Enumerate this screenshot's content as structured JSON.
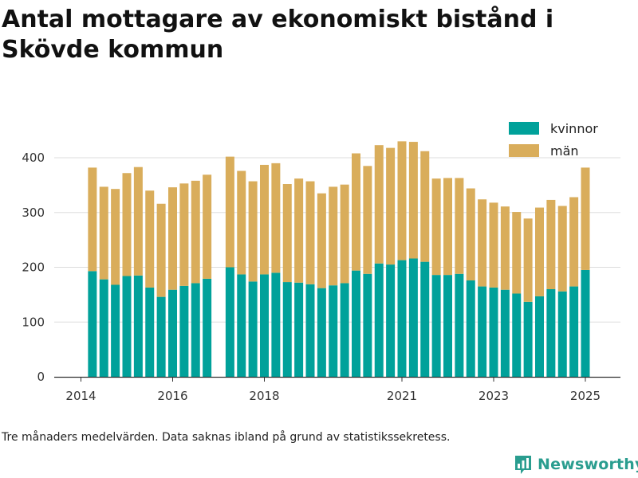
{
  "title": "Antal mottagare av ekonomiskt bistånd i Skövde kommun",
  "footnote": "Tre månaders medelvärden. Data saknas ibland på grund av statistikssekretess.",
  "brand": {
    "name": "Newsworthy",
    "icon": "newsworthy-chart-logo-icon"
  },
  "colors": {
    "kvinnor": "#00a19a",
    "man": "#d9ad5b",
    "grid": "#dddddd",
    "axis": "#333333"
  },
  "chart_data": {
    "type": "bar",
    "stacked": true,
    "x_unit": "quarter",
    "x_ticks": [
      "2014",
      "2016",
      "2018",
      "2021",
      "2023",
      "2025"
    ],
    "y_ticks": [
      "0",
      "100",
      "200",
      "300",
      "400"
    ],
    "ylim": [
      0,
      430
    ],
    "legend_position": "top-right",
    "grid": "horizontal",
    "series": [
      {
        "name": "kvinnor",
        "color": "#00a19a"
      },
      {
        "name": "män",
        "color": "#d9ad5b"
      }
    ],
    "points": [
      {
        "q": "2014-Q1",
        "kvinnor": null,
        "man": null
      },
      {
        "q": "2014-Q2",
        "kvinnor": 193,
        "man": 189
      },
      {
        "q": "2014-Q3",
        "kvinnor": 178,
        "man": 169
      },
      {
        "q": "2014-Q4",
        "kvinnor": 168,
        "man": 175
      },
      {
        "q": "2015-Q1",
        "kvinnor": 184,
        "man": 188
      },
      {
        "q": "2015-Q2",
        "kvinnor": 185,
        "man": 198
      },
      {
        "q": "2015-Q3",
        "kvinnor": 163,
        "man": 177
      },
      {
        "q": "2015-Q4",
        "kvinnor": 146,
        "man": 170
      },
      {
        "q": "2016-Q1",
        "kvinnor": 159,
        "man": 187
      },
      {
        "q": "2016-Q2",
        "kvinnor": 166,
        "man": 187
      },
      {
        "q": "2016-Q3",
        "kvinnor": 171,
        "man": 187
      },
      {
        "q": "2016-Q4",
        "kvinnor": 179,
        "man": 190
      },
      {
        "q": "2017-Q1",
        "kvinnor": null,
        "man": null
      },
      {
        "q": "2017-Q2",
        "kvinnor": 200,
        "man": 202
      },
      {
        "q": "2017-Q3",
        "kvinnor": 187,
        "man": 189
      },
      {
        "q": "2017-Q4",
        "kvinnor": 174,
        "man": 183
      },
      {
        "q": "2018-Q1",
        "kvinnor": 187,
        "man": 200
      },
      {
        "q": "2018-Q2",
        "kvinnor": 190,
        "man": 200
      },
      {
        "q": "2018-Q3",
        "kvinnor": 173,
        "man": 179
      },
      {
        "q": "2018-Q4",
        "kvinnor": 172,
        "man": 190
      },
      {
        "q": "2019-Q1",
        "kvinnor": 169,
        "man": 188
      },
      {
        "q": "2019-Q2",
        "kvinnor": 162,
        "man": 173
      },
      {
        "q": "2019-Q3",
        "kvinnor": 167,
        "man": 180
      },
      {
        "q": "2019-Q4",
        "kvinnor": 171,
        "man": 180
      },
      {
        "q": "2020-Q1",
        "kvinnor": 194,
        "man": 214
      },
      {
        "q": "2020-Q2",
        "kvinnor": 188,
        "man": 197
      },
      {
        "q": "2020-Q3",
        "kvinnor": 207,
        "man": 216
      },
      {
        "q": "2020-Q4",
        "kvinnor": 205,
        "man": 213
      },
      {
        "q": "2021-Q1",
        "kvinnor": 213,
        "man": 217
      },
      {
        "q": "2021-Q2",
        "kvinnor": 216,
        "man": 213
      },
      {
        "q": "2021-Q3",
        "kvinnor": 210,
        "man": 202
      },
      {
        "q": "2021-Q4",
        "kvinnor": 186,
        "man": 176
      },
      {
        "q": "2022-Q1",
        "kvinnor": 186,
        "man": 177
      },
      {
        "q": "2022-Q2",
        "kvinnor": 188,
        "man": 175
      },
      {
        "q": "2022-Q3",
        "kvinnor": 176,
        "man": 168
      },
      {
        "q": "2022-Q4",
        "kvinnor": 165,
        "man": 159
      },
      {
        "q": "2023-Q1",
        "kvinnor": 163,
        "man": 155
      },
      {
        "q": "2023-Q2",
        "kvinnor": 159,
        "man": 152
      },
      {
        "q": "2023-Q3",
        "kvinnor": 152,
        "man": 149
      },
      {
        "q": "2023-Q4",
        "kvinnor": 137,
        "man": 152
      },
      {
        "q": "2024-Q1",
        "kvinnor": 147,
        "man": 162
      },
      {
        "q": "2024-Q2",
        "kvinnor": 160,
        "man": 163
      },
      {
        "q": "2024-Q3",
        "kvinnor": 156,
        "man": 156
      },
      {
        "q": "2024-Q4",
        "kvinnor": 165,
        "man": 163
      },
      {
        "q": "2025-Q1",
        "kvinnor": 195,
        "man": 187
      }
    ]
  }
}
